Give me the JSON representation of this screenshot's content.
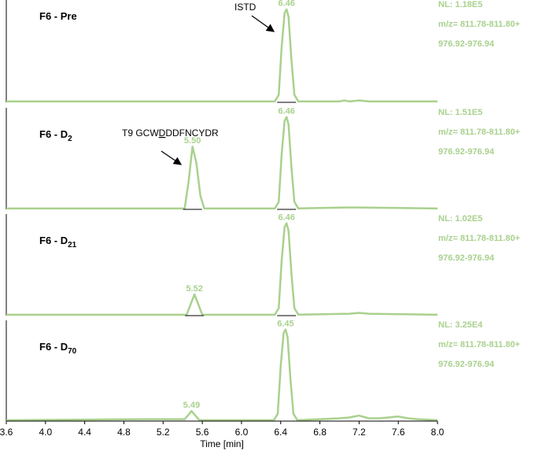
{
  "chart_data": [
    {
      "type": "line",
      "title": "F6 - Pre",
      "color": "#a9d18e",
      "xlim": [
        3.6,
        8.0
      ],
      "ylim": [
        0,
        110
      ],
      "info": [
        "NL: 1.18E5",
        "m/z= 811.78-811.80+",
        "976.92-976.94"
      ],
      "annotation": {
        "text": "ISTD"
      },
      "peaks": [
        {
          "value": 6.46,
          "label": "6.46"
        }
      ],
      "x": [
        3.6,
        6.34,
        6.38,
        6.41,
        6.44,
        6.46,
        6.48,
        6.51,
        6.54,
        6.58,
        7.0,
        7.05,
        7.1,
        7.2,
        7.3,
        7.5,
        8.0
      ],
      "values": [
        1,
        1,
        8,
        60,
        96,
        100,
        92,
        45,
        8,
        1,
        1,
        2,
        1,
        2,
        1,
        1,
        1
      ]
    },
    {
      "type": "line",
      "title": "F6 - D",
      "title_sub": "2",
      "color": "#a9d18e",
      "xlim": [
        3.6,
        8.0
      ],
      "ylim": [
        0,
        110
      ],
      "info": [
        "NL: 1.51E5",
        "m/z= 811.78-811.80+",
        "976.92-976.94"
      ],
      "annotation": {
        "text": "T9 GCW",
        "underlined": "D",
        "rest": "DDFNCYDR"
      },
      "peaks": [
        {
          "value": 5.5,
          "label": "5.50"
        },
        {
          "value": 6.46,
          "label": "6.46"
        }
      ],
      "x": [
        3.6,
        5.42,
        5.46,
        5.5,
        5.54,
        5.58,
        5.62,
        6.34,
        6.38,
        6.41,
        6.44,
        6.46,
        6.48,
        6.51,
        6.54,
        6.58,
        7.05,
        7.2,
        8.0
      ],
      "values": [
        1,
        1,
        30,
        68,
        50,
        15,
        1,
        1,
        8,
        60,
        96,
        100,
        92,
        45,
        8,
        1,
        2,
        2,
        1
      ]
    },
    {
      "type": "line",
      "title": "F6 - D",
      "title_sub": "21",
      "color": "#a9d18e",
      "xlim": [
        3.6,
        8.0
      ],
      "ylim": [
        0,
        110
      ],
      "info": [
        "NL: 1.02E5",
        "m/z= 811.78-811.80+",
        "976.92-976.94"
      ],
      "peaks": [
        {
          "value": 5.52,
          "label": "5.52"
        },
        {
          "value": 6.46,
          "label": "6.46"
        }
      ],
      "x": [
        3.6,
        5.44,
        5.48,
        5.52,
        5.56,
        5.6,
        6.34,
        6.38,
        6.41,
        6.44,
        6.46,
        6.48,
        6.51,
        6.54,
        6.58,
        7.1,
        7.2,
        7.3,
        8.0
      ],
      "values": [
        1,
        1,
        12,
        23,
        12,
        1,
        1,
        8,
        60,
        96,
        100,
        92,
        45,
        8,
        1,
        2,
        3,
        2,
        1
      ]
    },
    {
      "type": "line",
      "title": "F6 - D",
      "title_sub": "70",
      "color": "#a9d18e",
      "xlim": [
        3.6,
        8.0
      ],
      "ylim": [
        0,
        110
      ],
      "info": [
        "NL: 3.25E4",
        "m/z= 811.78-811.80+",
        "976.92-976.94"
      ],
      "peaks": [
        {
          "value": 5.49,
          "label": "5.49"
        },
        {
          "value": 6.45,
          "label": "6.45"
        }
      ],
      "x": [
        3.6,
        5.0,
        5.42,
        5.46,
        5.49,
        5.53,
        5.57,
        6.33,
        6.37,
        6.4,
        6.43,
        6.45,
        6.47,
        6.5,
        6.53,
        6.57,
        7.0,
        7.1,
        7.2,
        7.3,
        7.4,
        7.5,
        7.6,
        7.7,
        7.8,
        8.0
      ],
      "values": [
        1,
        2,
        2,
        7,
        11,
        6,
        1,
        1,
        8,
        60,
        96,
        100,
        92,
        45,
        8,
        1,
        3,
        4,
        6,
        3,
        3,
        4,
        5,
        3,
        2,
        1
      ],
      "xlabel": "Time [min]",
      "xticks": [
        3.6,
        {
          "value": 4,
          "label": "4.0"
        },
        4.4,
        4.8,
        5.2,
        5.6,
        {
          "value": 6,
          "label": "6.0"
        },
        6.4,
        6.8,
        7.2,
        7.6,
        {
          "value": 8,
          "label": "8.0"
        }
      ]
    }
  ]
}
